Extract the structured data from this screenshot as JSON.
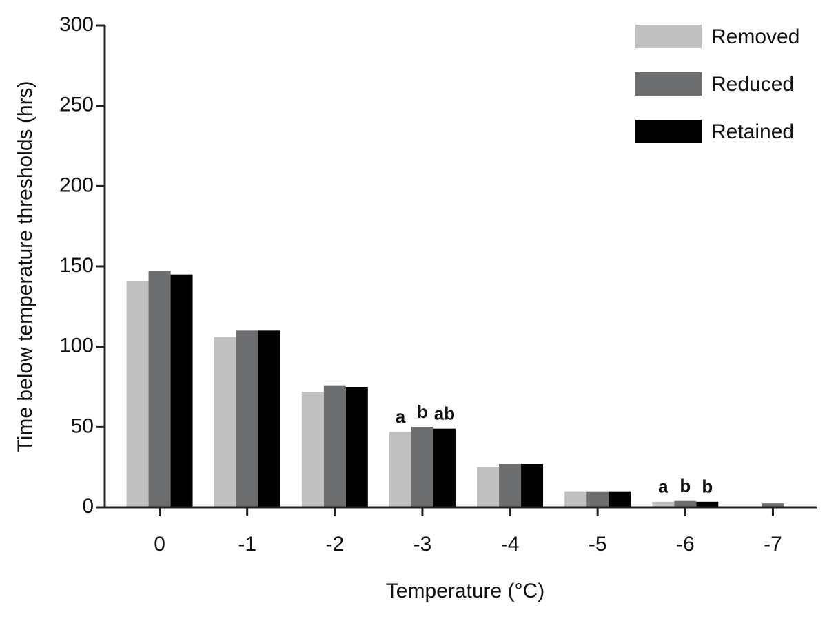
{
  "chart_data": {
    "type": "bar",
    "x_label": "Temperature (°C)",
    "y_label": "Time below temperature thresholds (hrs)",
    "categories": [
      "0",
      "-1",
      "-2",
      "-3",
      "-4",
      "-5",
      "-6",
      "-7"
    ],
    "series": [
      {
        "name": "Removed",
        "color": "#c0c0c0",
        "values": [
          141,
          106,
          72,
          47,
          25,
          10,
          3.5,
          0
        ],
        "significance": [
          null,
          null,
          null,
          "a",
          null,
          null,
          "a",
          null
        ]
      },
      {
        "name": "Reduced",
        "color": "#6d6e70",
        "values": [
          147,
          110,
          76,
          50,
          27,
          10,
          4,
          2.5
        ],
        "significance": [
          null,
          null,
          null,
          "b",
          null,
          null,
          "b",
          null
        ]
      },
      {
        "name": "Retained",
        "color": "#000000",
        "values": [
          145,
          110,
          75,
          49,
          27,
          10,
          3.5,
          0
        ],
        "significance": [
          null,
          null,
          null,
          "ab",
          null,
          null,
          "b",
          null
        ]
      }
    ],
    "ylim": [
      0,
      300
    ],
    "yticks": [
      0,
      50,
      100,
      150,
      200,
      250,
      300
    ],
    "legend": "top-right",
    "grid": false
  }
}
